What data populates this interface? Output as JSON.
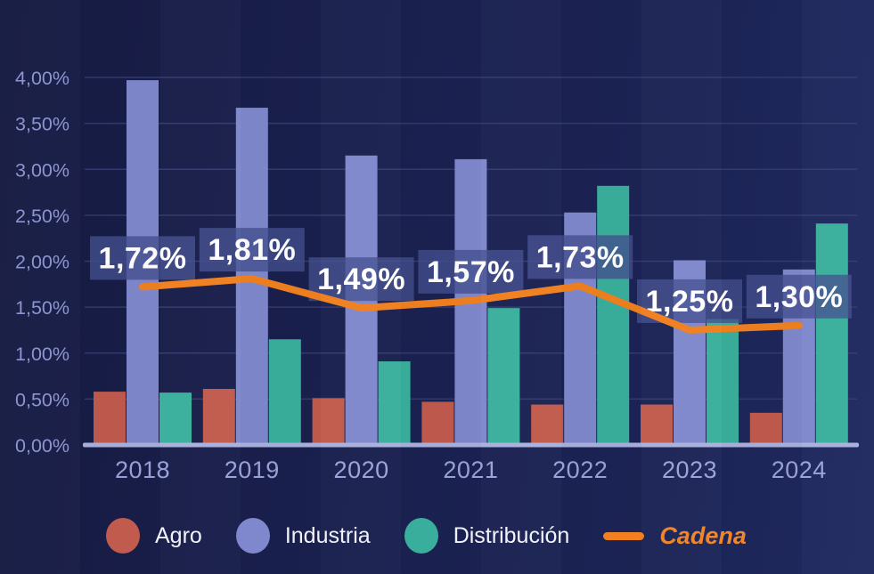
{
  "chart_data": {
    "type": "bar+line combo",
    "title": "",
    "categories": [
      "2018",
      "2019",
      "2020",
      "2021",
      "2022",
      "2023",
      "2024"
    ],
    "series": [
      {
        "name": "Agro",
        "type": "bar",
        "color": "#c15b4d",
        "values": [
          0.58,
          0.61,
          0.51,
          0.47,
          0.44,
          0.44,
          0.35
        ]
      },
      {
        "name": "Industria",
        "type": "bar",
        "color": "#7f88cd",
        "values": [
          3.97,
          3.67,
          3.15,
          3.11,
          2.53,
          2.01,
          1.91
        ]
      },
      {
        "name": "Distribución",
        "type": "bar",
        "color": "#3aae9c",
        "values": [
          0.57,
          1.15,
          0.91,
          1.49,
          2.82,
          1.37,
          2.41
        ]
      },
      {
        "name": "Cadena",
        "type": "line",
        "color": "#f0801f",
        "values": [
          1.72,
          1.81,
          1.49,
          1.57,
          1.73,
          1.25,
          1.3
        ],
        "point_labels": [
          "1,72%",
          "1,81%",
          "1,49%",
          "1,57%",
          "1,73%",
          "1,25%",
          "1,30%"
        ]
      }
    ],
    "y_axis": {
      "min": 0,
      "max": 4,
      "step": 0.5,
      "tick_labels": [
        "0,00%",
        "0,50%",
        "1,00%",
        "1,50%",
        "2,00%",
        "2,50%",
        "3,00%",
        "3,50%",
        "4,00%"
      ]
    },
    "grid": true,
    "legend_position": "bottom"
  },
  "colors": {
    "background": "#1a2151",
    "gridline": "#333b6e",
    "axis_baseline": "#a9b0dc",
    "tick_label": "#8a93cf",
    "category_label": "#9aa2d9",
    "data_label_text": "#ffffff",
    "data_label_box": "rgba(68,80,143,0.78)",
    "legend_text": "#f2f3fa",
    "cadena_text": "#f0862b"
  }
}
